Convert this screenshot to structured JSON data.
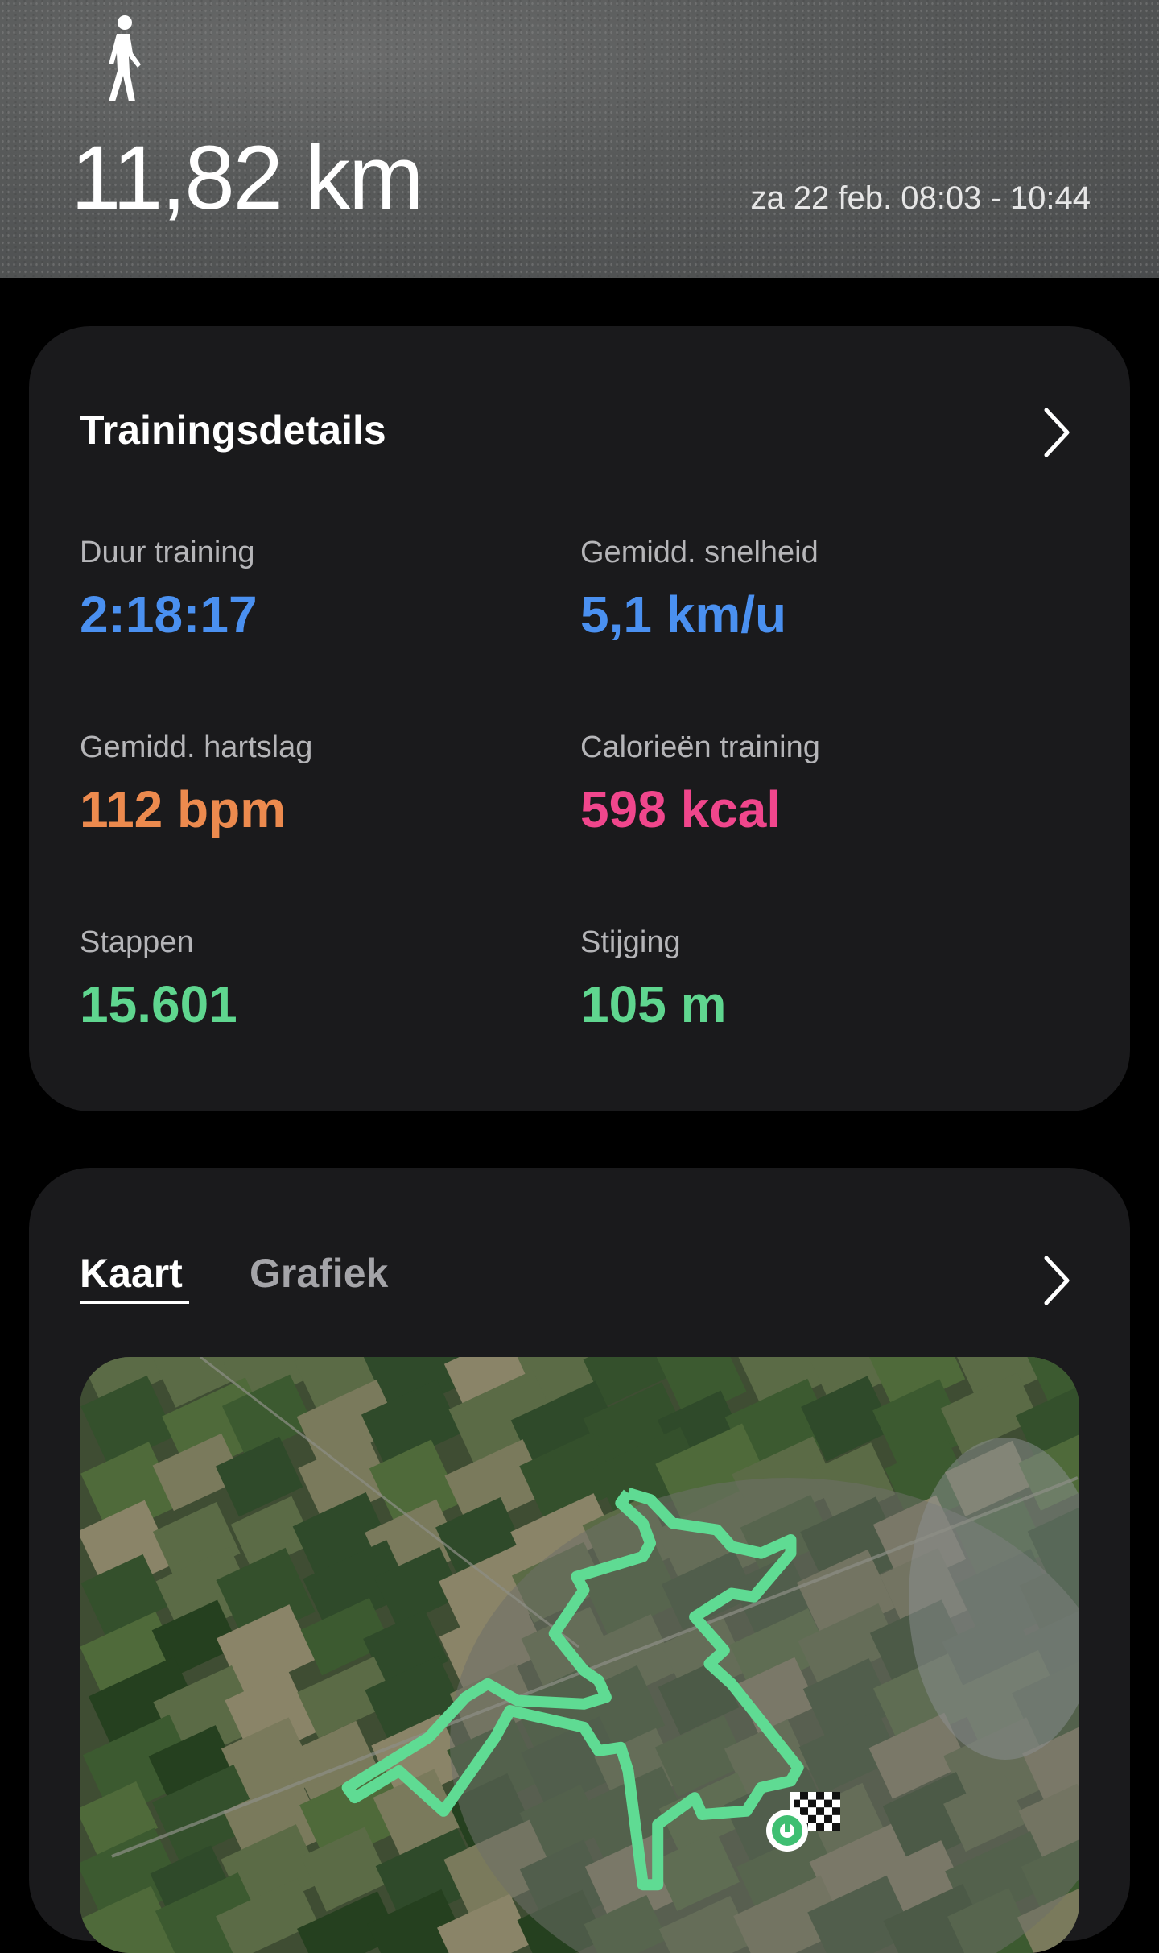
{
  "header": {
    "activity_icon": "walking-person-icon",
    "distance": "11,82 km",
    "date_time": "za 22 feb. 08:03 - 10:44"
  },
  "training_details": {
    "title": "Trainingsdetails",
    "stats": [
      {
        "label": "Duur training",
        "value": "2:18:17",
        "color": "#4a90f0"
      },
      {
        "label": "Gemidd. snelheid",
        "value": "5,1 km/u",
        "color": "#4a90f0"
      },
      {
        "label": "Gemidd. hartslag",
        "value": "112 bpm",
        "color": "#ec8a4e"
      },
      {
        "label": "Calorieën training",
        "value": "598 kcal",
        "color": "#f0468c"
      },
      {
        "label": "Stappen",
        "value": "15.601",
        "color": "#5fd68f"
      },
      {
        "label": "Stijging",
        "value": "105 m",
        "color": "#5fd68f"
      }
    ]
  },
  "map_card": {
    "tabs": [
      {
        "label": "Kaart",
        "active": true
      },
      {
        "label": "Grafiek",
        "active": false
      }
    ],
    "route_color": "#5fdb93"
  }
}
